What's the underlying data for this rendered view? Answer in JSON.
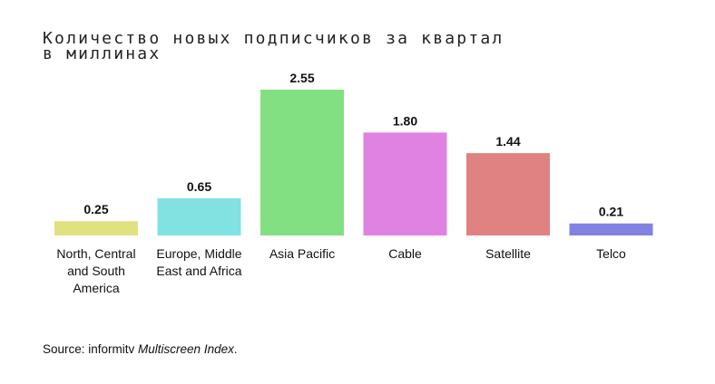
{
  "chart_data": {
    "type": "bar",
    "title": "Количество новых подписчиков за квартал",
    "subtitle": "в миллинах",
    "categories": [
      [
        "North, Central",
        "and South",
        "America"
      ],
      [
        "Europe, Middle",
        "East and Africa"
      ],
      [
        "Asia Pacific"
      ],
      [
        "Cable"
      ],
      [
        "Satellite"
      ],
      [
        "Telco"
      ]
    ],
    "values": [
      0.25,
      0.65,
      2.55,
      1.8,
      1.44,
      0.21
    ],
    "value_labels": [
      "0.25",
      "0.65",
      "2.55",
      "1.80",
      "1.44",
      "0.21"
    ],
    "colors": [
      "#e0e282",
      "#82e2e2",
      "#82e082",
      "#e082e2",
      "#e08282",
      "#8282e2"
    ],
    "ylim": [
      0,
      2.55
    ],
    "grid": false,
    "legend": "none"
  },
  "source": {
    "prefix": "Source: informitv ",
    "italic": "Multiscreen Index",
    "suffix": "."
  }
}
